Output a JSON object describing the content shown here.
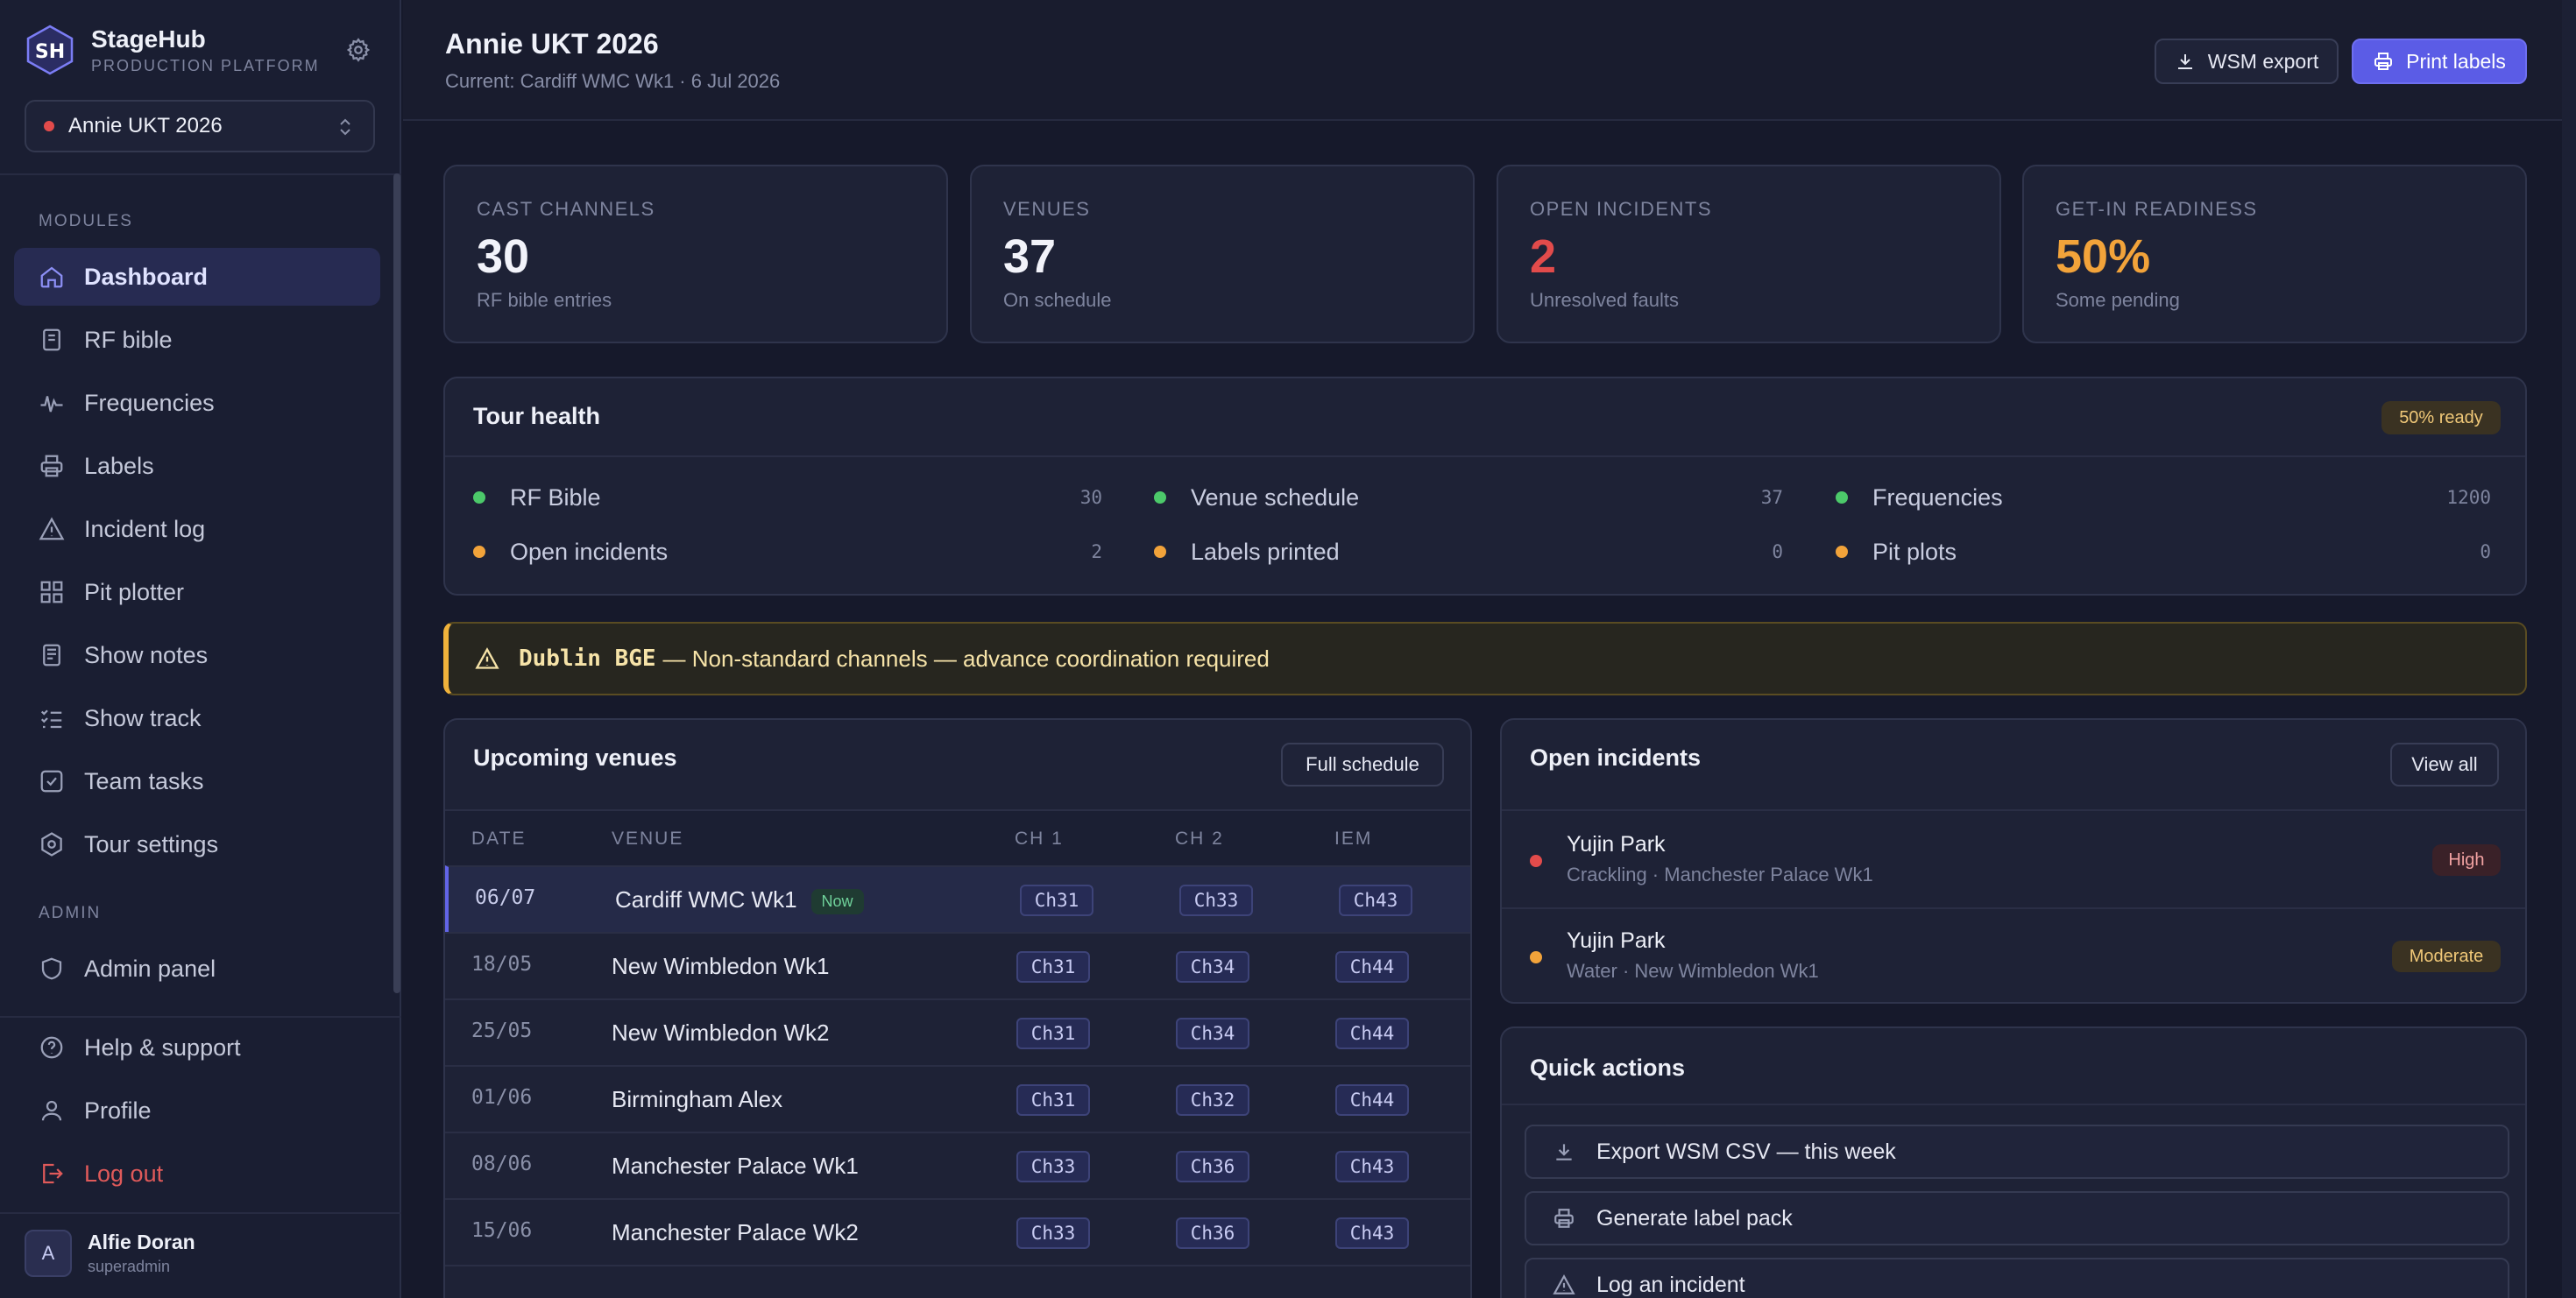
{
  "brand": {
    "title": "StageHub",
    "subtitle": "PRODUCTION PLATFORM",
    "logo_text": "SH"
  },
  "production_selector": {
    "value": "Annie UKT 2026",
    "status_color": "#e24b4b"
  },
  "sidebar": {
    "modules_label": "MODULES",
    "items": [
      {
        "label": "Dashboard",
        "icon": "home-icon",
        "active": true
      },
      {
        "label": "RF bible",
        "icon": "book-icon"
      },
      {
        "label": "Frequencies",
        "icon": "waveform-icon"
      },
      {
        "label": "Labels",
        "icon": "printer-icon"
      },
      {
        "label": "Incident log",
        "icon": "warning-icon"
      },
      {
        "label": "Pit plotter",
        "icon": "grid-icon"
      },
      {
        "label": "Show notes",
        "icon": "notes-icon"
      },
      {
        "label": "Show track",
        "icon": "checklist-icon"
      },
      {
        "label": "Team tasks",
        "icon": "checkbox-icon"
      },
      {
        "label": "Tour settings",
        "icon": "settings-icon"
      }
    ],
    "admin_label": "ADMIN",
    "admin_items": [
      {
        "label": "Admin panel",
        "icon": "shield-icon"
      }
    ],
    "footer_items": [
      {
        "label": "Help & support",
        "icon": "help-icon"
      },
      {
        "label": "Profile",
        "icon": "user-icon"
      },
      {
        "label": "Log out",
        "icon": "logout-icon"
      }
    ],
    "user": {
      "initial": "A",
      "name": "Alfie Doran",
      "role": "superadmin"
    }
  },
  "header": {
    "title": "Annie UKT 2026",
    "subtitle": "Current: Cardiff WMC Wk1 · 6 Jul 2026",
    "export_label": "WSM export",
    "print_label": "Print labels"
  },
  "stats": [
    {
      "label": "CAST CHANNELS",
      "value": "30",
      "desc": "RF bible entries",
      "color": "#f2f3fa"
    },
    {
      "label": "VENUES",
      "value": "37",
      "desc": "On schedule",
      "color": "#f2f3fa"
    },
    {
      "label": "OPEN INCIDENTS",
      "value": "2",
      "desc": "Unresolved faults",
      "color": "#e24b4b"
    },
    {
      "label": "GET-IN READINESS",
      "value": "50%",
      "desc": "Some pending",
      "color": "#f2a33a"
    }
  ],
  "tour_health": {
    "title": "Tour health",
    "badge": "50% ready",
    "items": [
      {
        "label": "RF Bible",
        "value": "30",
        "status": "green"
      },
      {
        "label": "Venue schedule",
        "value": "37",
        "status": "green"
      },
      {
        "label": "Frequencies",
        "value": "1200",
        "status": "green"
      },
      {
        "label": "Open incidents",
        "value": "2",
        "status": "amber"
      },
      {
        "label": "Labels printed",
        "value": "0",
        "status": "amber"
      },
      {
        "label": "Pit plots",
        "value": "0",
        "status": "amber"
      }
    ]
  },
  "alert": {
    "strong": "Dublin BGE",
    "text": "— Non-standard channels — advance coordination required"
  },
  "venues": {
    "title": "Upcoming venues",
    "button": "Full schedule",
    "columns": [
      "DATE",
      "VENUE",
      "CH 1",
      "CH 2",
      "IEM"
    ],
    "now_label": "Now",
    "rows": [
      {
        "date": "06/07",
        "venue": "Cardiff WMC Wk1",
        "ch1": "Ch31",
        "ch2": "Ch33",
        "iem": "Ch43",
        "now": true
      },
      {
        "date": "18/05",
        "venue": "New Wimbledon Wk1",
        "ch1": "Ch31",
        "ch2": "Ch34",
        "iem": "Ch44"
      },
      {
        "date": "25/05",
        "venue": "New Wimbledon Wk2",
        "ch1": "Ch31",
        "ch2": "Ch34",
        "iem": "Ch44"
      },
      {
        "date": "01/06",
        "venue": "Birmingham Alex",
        "ch1": "Ch31",
        "ch2": "Ch32",
        "iem": "Ch44"
      },
      {
        "date": "08/06",
        "venue": "Manchester Palace Wk1",
        "ch1": "Ch33",
        "ch2": "Ch36",
        "iem": "Ch43"
      },
      {
        "date": "15/06",
        "venue": "Manchester Palace Wk2",
        "ch1": "Ch33",
        "ch2": "Ch36",
        "iem": "Ch43"
      }
    ]
  },
  "incidents": {
    "title": "Open incidents",
    "button": "View all",
    "items": [
      {
        "name": "Yujin Park",
        "meta": "Crackling · Manchester Palace Wk1",
        "severity": "High",
        "dot": "#e24b4b",
        "badge_bg": "#3a2128",
        "badge_fg": "#f1a2a2"
      },
      {
        "name": "Yujin Park",
        "meta": "Water · New Wimbledon Wk1",
        "severity": "Moderate",
        "dot": "#f2a33a",
        "badge_bg": "#3a3222",
        "badge_fg": "#f0c878"
      }
    ]
  },
  "quick_actions": {
    "title": "Quick actions",
    "items": [
      {
        "label": "Export WSM CSV — this week",
        "icon": "download-icon"
      },
      {
        "label": "Generate label pack",
        "icon": "printer-icon"
      },
      {
        "label": "Log an incident",
        "icon": "warning-icon"
      }
    ]
  },
  "colors": {
    "accent": "#5b5ce6",
    "green": "#4cc96a",
    "amber": "#f2a33a",
    "red": "#e24b4b"
  }
}
